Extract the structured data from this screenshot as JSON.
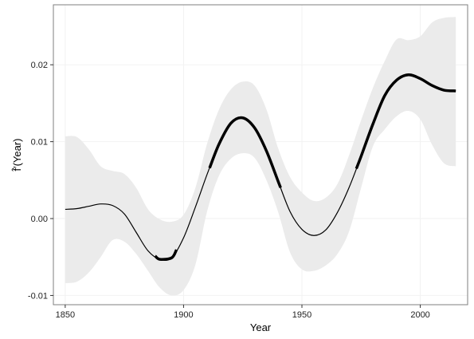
{
  "chart_data": {
    "type": "line",
    "title": "",
    "xlabel": "Year",
    "ylabel": "f̂′(Year)",
    "xlim": [
      1845,
      2020
    ],
    "ylim": [
      -0.0112,
      0.0278
    ],
    "x_ticks": [
      1850,
      1900,
      1950,
      2000
    ],
    "x_tick_labels": [
      "1850",
      "1900",
      "1950",
      "2000"
    ],
    "y_ticks": [
      -0.01,
      0.0,
      0.01,
      0.02
    ],
    "y_tick_labels": [
      "-0.01",
      "0.00",
      "0.01",
      "0.02"
    ],
    "grid": true,
    "legend": "none",
    "colors": {
      "band": "#ebebeb",
      "line": "#000000",
      "grid": "#f2f2f2",
      "frame": "#7f7f7f"
    },
    "series": [
      {
        "x": [
          1850,
          1855,
          1860,
          1865,
          1870,
          1875,
          1880,
          1885,
          1890,
          1895,
          1900,
          1905,
          1910,
          1915,
          1920,
          1925,
          1930,
          1935,
          1940,
          1945,
          1950,
          1955,
          1960,
          1965,
          1970,
          1975,
          1980,
          1985,
          1990,
          1995,
          2000,
          2005,
          2010,
          2015
        ],
        "y": [
          0.0012,
          0.0013,
          0.0016,
          0.0019,
          0.0017,
          0.0006,
          -0.0018,
          -0.0042,
          -0.0053,
          -0.0051,
          -0.0025,
          0.0015,
          0.0058,
          0.0097,
          0.0124,
          0.0131,
          0.0118,
          0.0088,
          0.0048,
          0.0009,
          -0.0014,
          -0.0022,
          -0.0015,
          0.0008,
          0.0041,
          0.0081,
          0.0123,
          0.016,
          0.018,
          0.0187,
          0.0182,
          0.0173,
          0.0167,
          0.0166
        ],
        "lower": [
          -0.0084,
          -0.0082,
          -0.007,
          -0.005,
          -0.0028,
          -0.003,
          -0.0046,
          -0.0068,
          -0.009,
          -0.01,
          -0.0093,
          -0.006,
          0.001,
          0.0056,
          0.0078,
          0.0085,
          0.0079,
          0.005,
          0.0008,
          -0.0044,
          -0.0066,
          -0.0068,
          -0.0061,
          -0.0046,
          -0.0016,
          0.004,
          0.0094,
          0.0116,
          0.0133,
          0.014,
          0.0129,
          0.0096,
          0.0072,
          0.0068
        ],
        "upper": [
          0.0107,
          0.0106,
          0.009,
          0.0068,
          0.0062,
          0.0058,
          0.004,
          0.0012,
          -0.0001,
          -0.0004,
          0.0005,
          0.004,
          0.0098,
          0.0142,
          0.0168,
          0.0178,
          0.0173,
          0.0142,
          0.0091,
          0.0054,
          0.0034,
          0.0023,
          0.0027,
          0.0045,
          0.0083,
          0.0128,
          0.017,
          0.0205,
          0.0233,
          0.0232,
          0.0237,
          0.0255,
          0.0261,
          0.0262
        ]
      }
    ],
    "emphasized_ranges": [
      [
        1888,
        1897
      ],
      [
        1911,
        1941
      ],
      [
        1973,
        2015
      ]
    ]
  }
}
